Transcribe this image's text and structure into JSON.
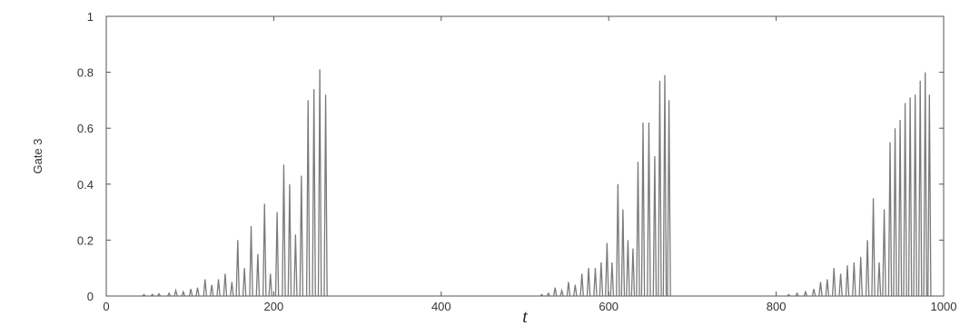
{
  "chart_data": {
    "type": "line",
    "title": "",
    "xlabel": "t",
    "ylabel": "Gate 3",
    "xlim": [
      0,
      1000
    ],
    "ylim": [
      0,
      1
    ],
    "x_ticks": [
      "0",
      "200",
      "400",
      "600",
      "800",
      "1000"
    ],
    "y_ticks": [
      "0",
      "0.2",
      "0.4",
      "0.6",
      "0.8",
      "1"
    ],
    "grid": false,
    "legend": "none",
    "series": [
      {
        "color": "#7a7a7a",
        "peaks": [
          {
            "t": 45,
            "v": 0.005
          },
          {
            "t": 55,
            "v": 0.006
          },
          {
            "t": 63,
            "v": 0.008
          },
          {
            "t": 75,
            "v": 0.01
          },
          {
            "t": 83,
            "v": 0.02
          },
          {
            "t": 92,
            "v": 0.015
          },
          {
            "t": 101,
            "v": 0.025
          },
          {
            "t": 109,
            "v": 0.03
          },
          {
            "t": 118,
            "v": 0.06
          },
          {
            "t": 126,
            "v": 0.04
          },
          {
            "t": 134,
            "v": 0.06
          },
          {
            "t": 142,
            "v": 0.08
          },
          {
            "t": 150,
            "v": 0.05
          },
          {
            "t": 157,
            "v": 0.2
          },
          {
            "t": 165,
            "v": 0.1
          },
          {
            "t": 173,
            "v": 0.25
          },
          {
            "t": 181,
            "v": 0.15
          },
          {
            "t": 189,
            "v": 0.33
          },
          {
            "t": 196,
            "v": 0.08
          },
          {
            "t": 204,
            "v": 0.3
          },
          {
            "t": 212,
            "v": 0.47
          },
          {
            "t": 219,
            "v": 0.4
          },
          {
            "t": 226,
            "v": 0.22
          },
          {
            "t": 233,
            "v": 0.43
          },
          {
            "t": 241,
            "v": 0.7
          },
          {
            "t": 248,
            "v": 0.74
          },
          {
            "t": 255,
            "v": 0.81
          },
          {
            "t": 262,
            "v": 0.72
          },
          {
            "t": 520,
            "v": 0.005
          },
          {
            "t": 528,
            "v": 0.01
          },
          {
            "t": 536,
            "v": 0.03
          },
          {
            "t": 544,
            "v": 0.02
          },
          {
            "t": 552,
            "v": 0.05
          },
          {
            "t": 560,
            "v": 0.04
          },
          {
            "t": 568,
            "v": 0.08
          },
          {
            "t": 576,
            "v": 0.1
          },
          {
            "t": 584,
            "v": 0.1
          },
          {
            "t": 591,
            "v": 0.12
          },
          {
            "t": 598,
            "v": 0.19
          },
          {
            "t": 604,
            "v": 0.12
          },
          {
            "t": 611,
            "v": 0.4
          },
          {
            "t": 617,
            "v": 0.31
          },
          {
            "t": 623,
            "v": 0.2
          },
          {
            "t": 629,
            "v": 0.17
          },
          {
            "t": 635,
            "v": 0.48
          },
          {
            "t": 641,
            "v": 0.62
          },
          {
            "t": 648,
            "v": 0.62
          },
          {
            "t": 655,
            "v": 0.5
          },
          {
            "t": 661,
            "v": 0.77
          },
          {
            "t": 667,
            "v": 0.79
          },
          {
            "t": 672,
            "v": 0.7
          },
          {
            "t": 815,
            "v": 0.005
          },
          {
            "t": 825,
            "v": 0.01
          },
          {
            "t": 835,
            "v": 0.015
          },
          {
            "t": 845,
            "v": 0.025
          },
          {
            "t": 853,
            "v": 0.05
          },
          {
            "t": 861,
            "v": 0.06
          },
          {
            "t": 869,
            "v": 0.1
          },
          {
            "t": 877,
            "v": 0.08
          },
          {
            "t": 885,
            "v": 0.11
          },
          {
            "t": 893,
            "v": 0.12
          },
          {
            "t": 901,
            "v": 0.14
          },
          {
            "t": 909,
            "v": 0.2
          },
          {
            "t": 916,
            "v": 0.35
          },
          {
            "t": 923,
            "v": 0.12
          },
          {
            "t": 929,
            "v": 0.31
          },
          {
            "t": 936,
            "v": 0.55
          },
          {
            "t": 942,
            "v": 0.6
          },
          {
            "t": 948,
            "v": 0.63
          },
          {
            "t": 954,
            "v": 0.69
          },
          {
            "t": 960,
            "v": 0.71
          },
          {
            "t": 966,
            "v": 0.72
          },
          {
            "t": 972,
            "v": 0.77
          },
          {
            "t": 978,
            "v": 0.8
          },
          {
            "t": 983,
            "v": 0.72
          }
        ]
      }
    ]
  }
}
